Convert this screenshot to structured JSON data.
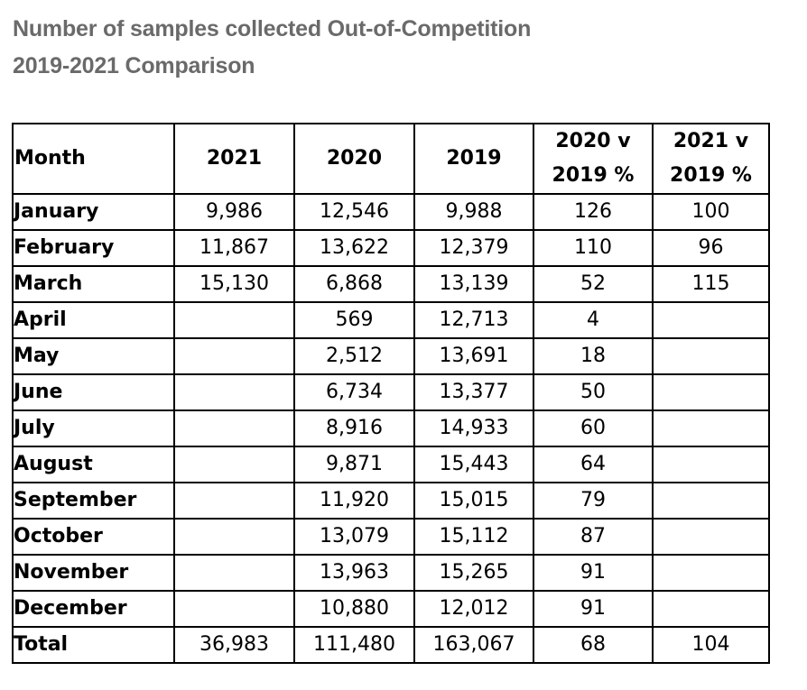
{
  "chart_data": {
    "type": "table",
    "title": "Number of samples collected Out-of-Competition",
    "subtitle": "2019-2021 Comparison",
    "columns": [
      "Month",
      "2021",
      "2020",
      "2019",
      "2020 v 2019 %",
      "2021 v 2019 %"
    ],
    "header": {
      "month": "Month",
      "y2021": "2021",
      "y2020": "2020",
      "y2019": "2019",
      "p2020_top": "2020 v",
      "p2020_bottom": "2019 %",
      "p2021_top": "2021 v",
      "p2021_bottom": "2019 %"
    },
    "rows": [
      {
        "month": "January",
        "y2021": "9,986",
        "y2020": "12,546",
        "y2019": "9,988",
        "p2020": "126",
        "p2021": "100"
      },
      {
        "month": "February",
        "y2021": "11,867",
        "y2020": "13,622",
        "y2019": "12,379",
        "p2020": "110",
        "p2021": "96"
      },
      {
        "month": "March",
        "y2021": "15,130",
        "y2020": "6,868",
        "y2019": "13,139",
        "p2020": "52",
        "p2021": "115"
      },
      {
        "month": "April",
        "y2021": "",
        "y2020": "569",
        "y2019": "12,713",
        "p2020": "4",
        "p2021": ""
      },
      {
        "month": "May",
        "y2021": "",
        "y2020": "2,512",
        "y2019": "13,691",
        "p2020": "18",
        "p2021": ""
      },
      {
        "month": "June",
        "y2021": "",
        "y2020": "6,734",
        "y2019": "13,377",
        "p2020": "50",
        "p2021": ""
      },
      {
        "month": "July",
        "y2021": "",
        "y2020": "8,916",
        "y2019": "14,933",
        "p2020": "60",
        "p2021": ""
      },
      {
        "month": "August",
        "y2021": "",
        "y2020": "9,871",
        "y2019": "15,443",
        "p2020": "64",
        "p2021": ""
      },
      {
        "month": "September",
        "y2021": "",
        "y2020": "11,920",
        "y2019": "15,015",
        "p2020": "79",
        "p2021": ""
      },
      {
        "month": "October",
        "y2021": "",
        "y2020": "13,079",
        "y2019": "15,112",
        "p2020": "87",
        "p2021": ""
      },
      {
        "month": "November",
        "y2021": "",
        "y2020": "13,963",
        "y2019": "15,265",
        "p2020": "91",
        "p2021": ""
      },
      {
        "month": "December",
        "y2021": "",
        "y2020": "10,880",
        "y2019": "12,012",
        "p2020": "91",
        "p2021": ""
      },
      {
        "month": "Total",
        "y2021": "36,983",
        "y2020": "111,480",
        "y2019": "163,067",
        "p2020": "68",
        "p2021": "104"
      }
    ],
    "title_color": "#6a6a6a"
  }
}
